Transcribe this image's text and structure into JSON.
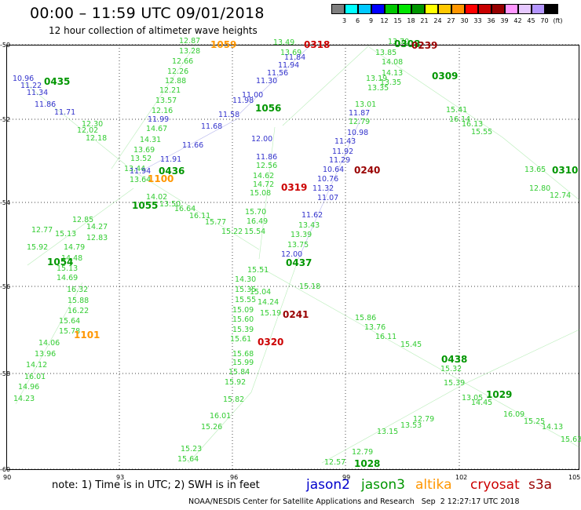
{
  "title": "00:00 – 11:59 UTC 09/01/2018",
  "subtitle": "12 hour collection of altimeter wave heights",
  "colorbar": {
    "labels": [
      "3",
      "6",
      "9",
      "12",
      "15",
      "18",
      "21",
      "24",
      "27",
      "30",
      "33",
      "36",
      "39",
      "42",
      "45",
      "70",
      "(ft)"
    ],
    "colors": [
      "#7f7f7f",
      "#00ffff",
      "#00c8ff",
      "#0000ff",
      "#00c800",
      "#00e600",
      "#009600",
      "#ffff00",
      "#ffc800",
      "#ff9600",
      "#ff0000",
      "#c80000",
      "#960000",
      "#ff96ff",
      "#e6c8ff",
      "#b496ff",
      "#000000"
    ]
  },
  "axes": {
    "lat_labels": [
      "-50",
      "-52",
      "-54",
      "-56",
      "-58",
      "-60"
    ],
    "lon_labels": [
      "90",
      "93",
      "96",
      "99",
      "102",
      "105"
    ]
  },
  "note": "note: 1) Time is in UTC; 2) SWH is in feet",
  "legend": [
    {
      "name": "jason2",
      "color": "#0000cc"
    },
    {
      "name": "jason3",
      "color": "#009600"
    },
    {
      "name": "altika",
      "color": "#ff9600"
    },
    {
      "name": "cryosat",
      "color": "#cc0000"
    },
    {
      "name": "s3a",
      "color": "#990000"
    }
  ],
  "footer": "NOAA/NESDIS Center for Satellite Applications and Research   Sep  2 12:27:17 UTC 2018",
  "pass_times": [
    {
      "text": "1059",
      "color": "#ff9600"
    },
    {
      "text": "0318",
      "color": "#cc0000"
    },
    {
      "text": "0308",
      "color": "#009600"
    },
    {
      "text": "0239",
      "color": "#990000"
    },
    {
      "text": "0435",
      "color": "#009600"
    },
    {
      "text": "0309",
      "color": "#009600"
    },
    {
      "text": "1056",
      "color": "#009600"
    },
    {
      "text": "0240",
      "color": "#990000"
    },
    {
      "text": "0310",
      "color": "#009600"
    },
    {
      "text": "0436",
      "color": "#009600"
    },
    {
      "text": "1100",
      "color": "#ff9600"
    },
    {
      "text": "0319",
      "color": "#cc0000"
    },
    {
      "text": "1055",
      "color": "#009600"
    },
    {
      "text": "1054",
      "color": "#009600"
    },
    {
      "text": "0437",
      "color": "#009600"
    },
    {
      "text": "0241",
      "color": "#990000"
    },
    {
      "text": "1101",
      "color": "#ff9600"
    },
    {
      "text": "0320",
      "color": "#cc0000"
    },
    {
      "text": "0438",
      "color": "#009600"
    },
    {
      "text": "1029",
      "color": "#009600"
    },
    {
      "text": "1028",
      "color": "#009600"
    }
  ],
  "swh_values": [
    "12.87",
    "13.28",
    "12.66",
    "12.26",
    "12.88",
    "12.21",
    "13.57",
    "12.16",
    "14.67",
    "14.31",
    "13.69",
    "13.52",
    "13.44",
    "13.64",
    "14.02",
    "13.50",
    "16.64",
    "16.11",
    "15.77",
    "15.22",
    "13.49",
    "13.69",
    "13.85",
    "14.08",
    "14.13",
    "13.19",
    "13.35",
    "13.01",
    "12.79",
    "11.87",
    "10.98",
    "11.43",
    "11.92",
    "11.29",
    "10.64",
    "10.76",
    "11.32",
    "11.07",
    "11.62",
    "13.43",
    "13.39",
    "13.75",
    "12.00",
    "11.84",
    "11.94",
    "11.56",
    "11.30",
    "11.00",
    "11.98",
    "11.58",
    "11.68",
    "11.66",
    "11.91",
    "11.94",
    "11.99",
    "12.00",
    "11.86",
    "10.96",
    "11.22",
    "11.34",
    "11.86",
    "11.71",
    "13.70",
    "13.35",
    "15.41",
    "16.14",
    "16.13",
    "15.55",
    "13.65",
    "12.80",
    "12.74",
    "12.56",
    "14.62",
    "14.72",
    "15.08",
    "15.70",
    "16.49",
    "15.54",
    "15.51",
    "15.04",
    "15.35",
    "15.55",
    "15.09",
    "15.60",
    "15.39",
    "15.61",
    "15.68",
    "15.99",
    "15.84",
    "15.92",
    "15.82",
    "16.01",
    "15.26",
    "15.23",
    "15.64",
    "15.18",
    "15.86",
    "16.11",
    "15.45",
    "15.32",
    "15.39",
    "14.45",
    "16.09",
    "15.25",
    "14.13",
    "15.63",
    "16.32",
    "15.88",
    "16.22",
    "15.64",
    "15.78",
    "14.06",
    "13.96",
    "14.12",
    "16.01",
    "14.96",
    "14.23",
    "15.13",
    "15.92",
    "14.79",
    "14.48",
    "15.13",
    "14.69",
    "14.27",
    "12.83",
    "14.30",
    "14.24",
    "15.19",
    "12.57",
    "12.79",
    "13.15",
    "13.53",
    "12.79",
    "13.76",
    "12.02",
    "12.30",
    "12.18",
    "12.77",
    "12.85",
    "13.05"
  ]
}
